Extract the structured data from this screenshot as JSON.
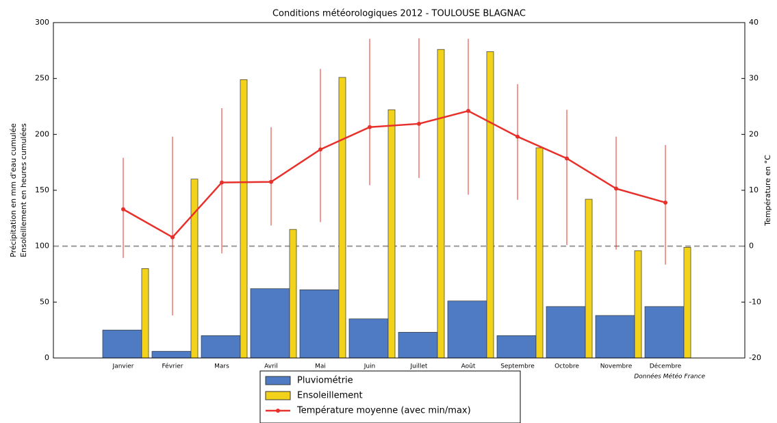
{
  "chart_data": {
    "type": "bar",
    "title": "Conditions météorologiques 2012 - TOULOUSE BLAGNAC",
    "ylabel": [
      "Précipitation en mm d'eau cumulée",
      "Ensoleillement en heures cumulées"
    ],
    "y2label": "Température en °C",
    "annotation": "Données Météo France",
    "categories": [
      "Janvier",
      "Février",
      "Mars",
      "Avril",
      "Mai",
      "Juin",
      "Juillet",
      "Août",
      "Septembre",
      "Octobre",
      "Novembre",
      "Décembre"
    ],
    "series": [
      {
        "name": "Pluviométrie",
        "type": "bar",
        "color": "#4f7bc4",
        "values": [
          25,
          6,
          20,
          62,
          61,
          35,
          23,
          51,
          20,
          46,
          38,
          46
        ]
      },
      {
        "name": "Ensoleillement",
        "type": "bar",
        "color": "#f2d21a",
        "values": [
          80,
          160,
          249,
          115,
          251,
          222,
          276,
          274,
          188,
          142,
          96,
          99
        ]
      },
      {
        "name": "Température moyenne (avec min/max)",
        "type": "line",
        "axis": "y2",
        "color": "#e8302a",
        "values": [
          6.6,
          1.6,
          11.4,
          11.5,
          17.3,
          21.3,
          21.9,
          24.2,
          19.6,
          15.7,
          10.3,
          7.8
        ],
        "min": [
          -2.1,
          -12.4,
          -1.3,
          3.7,
          4.3,
          10.9,
          12.2,
          9.2,
          8.3,
          0.2,
          -0.6,
          -3.3
        ],
        "max": [
          15.8,
          19.6,
          24.7,
          21.3,
          31.7,
          37.1,
          37.2,
          37.1,
          29.0,
          24.4,
          19.6,
          18.1
        ]
      }
    ],
    "ylim": [
      0,
      300
    ],
    "yticks": [
      0,
      50,
      100,
      150,
      200,
      250,
      300
    ],
    "y2lim": [
      -20,
      40
    ],
    "y2ticks": [
      -20,
      -10,
      0,
      10,
      20,
      30,
      40
    ],
    "y2_reference_line": 0
  }
}
